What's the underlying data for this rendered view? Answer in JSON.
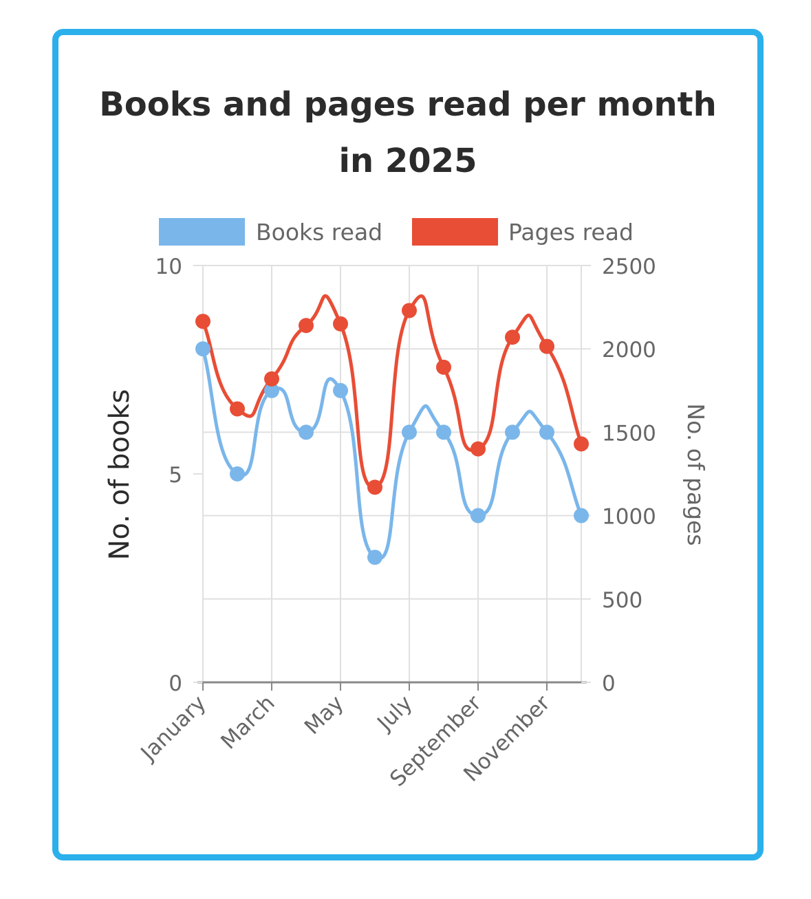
{
  "colors": {
    "frame": "#2bb0ec",
    "books": "#7ab6ea",
    "pages": "#e84d36",
    "grid": "#e0e0e0",
    "axis_text": "#666666",
    "title_text": "#2b2b2b"
  },
  "chart_data": {
    "type": "line",
    "title": "Books and pages read per month in 2025",
    "title_lines": [
      "Books and pages read per month",
      "in 2025"
    ],
    "x": [
      "January",
      "February",
      "March",
      "April",
      "May",
      "June",
      "July",
      "August",
      "September",
      "October",
      "November",
      "December"
    ],
    "x_tick_labels": [
      "January",
      "March",
      "May",
      "July",
      "September",
      "November"
    ],
    "y_left_label": "No. of books",
    "y_right_label": "No. of pages",
    "y_left_lim": [
      0,
      10
    ],
    "y_right_lim": [
      0,
      2500
    ],
    "y_left_ticks": [
      "0",
      "5",
      "10"
    ],
    "y_right_ticks": [
      "0",
      "500",
      "1000",
      "1500",
      "2000",
      "2500"
    ],
    "grid": true,
    "legend_position": "top",
    "smooth": true,
    "series": [
      {
        "name": "Books read",
        "axis": "left",
        "color": "#7ab6ea",
        "values": [
          8,
          5,
          7,
          6,
          7,
          3,
          6,
          6,
          4,
          6,
          6,
          4
        ]
      },
      {
        "name": "Pages read",
        "axis": "right",
        "color": "#e84d36",
        "values": [
          2165,
          1640,
          1820,
          2140,
          2150,
          1170,
          2230,
          1890,
          1400,
          2070,
          2015,
          1430
        ]
      }
    ]
  }
}
